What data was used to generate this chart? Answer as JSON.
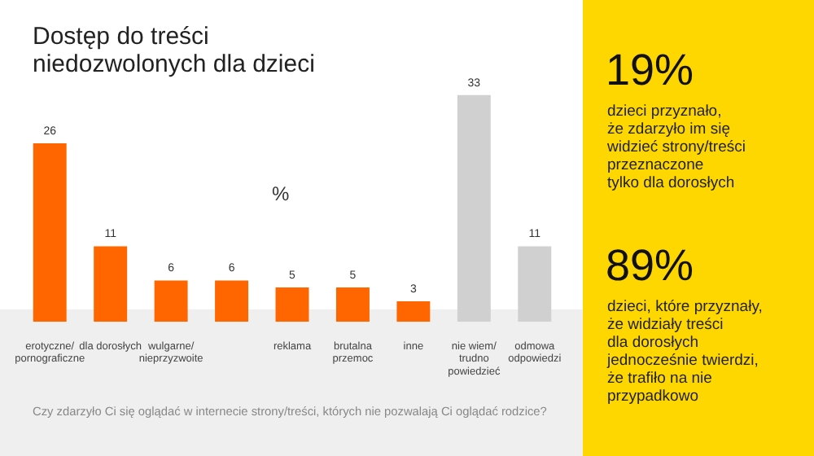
{
  "chart_data": {
    "type": "bar",
    "title": "Dostęp do treści niedozwolonych dla dzieci",
    "categories": [
      "erotyczne/ pornograficzne",
      "dla dorosłych",
      "wulgarne/ nieprzyzwoite",
      null,
      "reklama",
      "brutalna przemoc",
      "inne",
      "nie wiem/ trudno powiedzieć",
      "odmowa odpowiedzi"
    ],
    "values": [
      26,
      11,
      6,
      6,
      5,
      5,
      3,
      33,
      11
    ],
    "colors": [
      "#ff6600",
      "#ff6600",
      "#ff6600",
      "#ff6600",
      "#ff6600",
      "#ff6600",
      "#ff6600",
      "#d0d0d0",
      "#d0d0d0"
    ],
    "data_labels": true,
    "annotations": [
      "%",
      "Czy zdarzyło Ci się oglądać w internecie strony/treści, których nie pozwalają Ci oglądać rodzice?",
      "19%",
      "dzieci przyznało,\nże zdarzyło im się\nwidzieć strony/treści\nprzeznaczone\ntylko dla dorosłych",
      "89%",
      "dzieci, które przyznały,\nże widziały treści\ndla dorosłych\njednocześnie twierdzi,\nże trafiło na nie\nprzypadkowo"
    ]
  }
}
